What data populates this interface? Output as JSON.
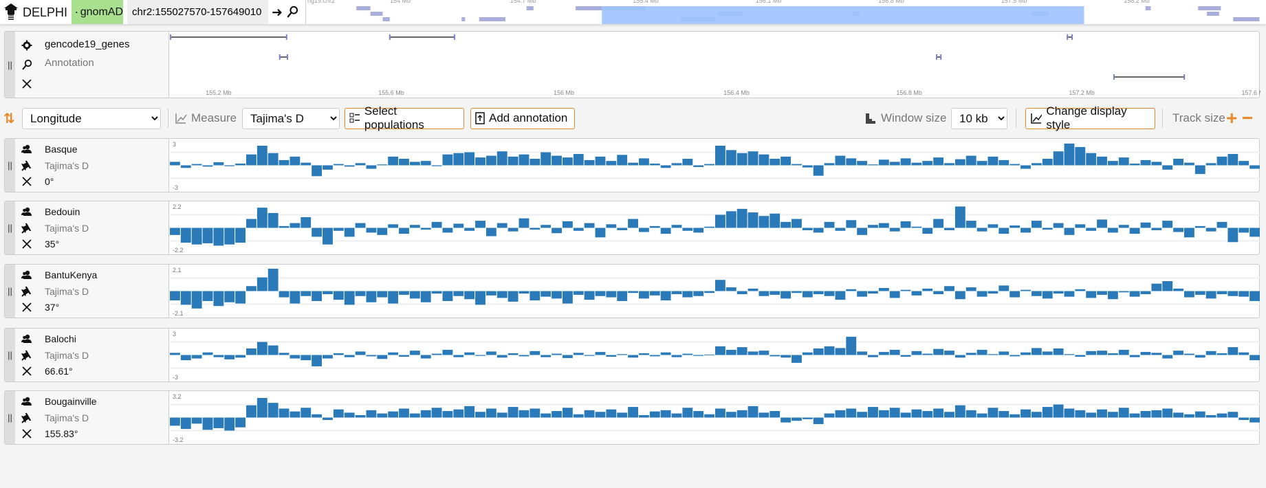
{
  "app": {
    "title": "DELPHI",
    "dataset_badge": "gnomAD",
    "location": "chr2:155027570-157649010"
  },
  "nav": {
    "chromosome_label": "hg19.chr2",
    "ticks": [
      "154 Mb",
      "154.7 Mb",
      "155.4 Mb",
      "156.1 Mb",
      "156.8 Mb",
      "157.5 Mb",
      "158.2 Mb"
    ],
    "tick_values": [
      154,
      154.7,
      155.4,
      156.1,
      156.8,
      157.5,
      158.2
    ],
    "highlight_mb": [
      155.15,
      157.9
    ],
    "highlight_color": "#9dc3ff",
    "feature_color": "#a9aedc",
    "features_mb": [
      [
        153.75,
        153.83,
        0
      ],
      [
        154.72,
        154.76,
        0
      ],
      [
        155.0,
        155.4,
        0
      ],
      [
        155.81,
        155.95,
        1
      ],
      [
        156.58,
        156.62,
        1
      ],
      [
        157.6,
        157.7,
        1
      ],
      [
        158.25,
        158.28,
        0
      ],
      [
        158.55,
        158.68,
        0
      ],
      [
        153.83,
        153.9,
        1
      ],
      [
        153.9,
        153.94,
        2
      ],
      [
        154.35,
        154.37,
        2
      ],
      [
        154.45,
        154.6,
        2
      ],
      [
        155.6,
        155.8,
        2
      ],
      [
        158.6,
        158.67,
        1
      ],
      [
        158.75,
        158.9,
        2
      ]
    ]
  },
  "annotation_track": {
    "name": "gencode19_genes",
    "type": "Annotation",
    "domain_mb": [
      155.087,
      157.614
    ],
    "ticks": [
      "155.2 Mb",
      "155.6 Mb",
      "156 Mb",
      "156.4 Mb",
      "156.8 Mb",
      "157.2 Mb",
      "157.6 Mb"
    ],
    "tick_values": [
      155.2,
      155.6,
      156.0,
      156.4,
      156.8,
      157.2,
      157.6
    ],
    "genes_mb": [
      [
        155.087,
        155.359,
        0
      ],
      [
        155.595,
        155.748,
        0
      ],
      [
        157.165,
        157.179,
        0
      ],
      [
        155.34,
        155.361,
        1
      ],
      [
        156.862,
        156.875,
        1
      ],
      [
        157.273,
        157.439,
        2
      ]
    ]
  },
  "toolbar": {
    "sort_value": "Longitude",
    "measure_label": "Measure",
    "measure_value": "Tajima's D",
    "select_populations": "Select populations",
    "add_annotation": "Add annotation",
    "window_size_label": "Window size",
    "window_size_value": "10 kb",
    "change_display_style": "Change display style",
    "track_size_label": "Track size",
    "plus": "+",
    "minus": "−"
  },
  "colors": {
    "bar": "#2a7ab9",
    "accent": "#e8892c",
    "badge": "#a8e08f"
  },
  "chart_data": [
    {
      "type": "bar",
      "series_name": "Basque",
      "measure": "Tajima's D",
      "angle": "0°",
      "ylim_labels": [
        "3",
        "-3"
      ],
      "gridline": 3,
      "values": [
        0.8,
        -0.6,
        0.3,
        -0.3,
        0.7,
        -0.2,
        0.4,
        2.5,
        4.5,
        2.8,
        1.2,
        2.0,
        0.6,
        -2.5,
        -1.0,
        0.3,
        -0.3,
        0.5,
        -0.8,
        0.2,
        2.0,
        1.5,
        0.8,
        1.0,
        -0.2,
        2.5,
        2.8,
        3.0,
        1.8,
        2.2,
        3.2,
        2.0,
        2.5,
        1.5,
        3.0,
        2.2,
        1.8,
        2.6,
        1.2,
        2.0,
        1.0,
        2.4,
        0.6,
        1.6,
        0.4,
        -0.6,
        0.5,
        1.5,
        -0.4,
        0.3,
        4.5,
        3.5,
        2.8,
        3.2,
        2.5,
        1.5,
        2.0,
        0.3,
        -0.5,
        -2.4,
        0.5,
        2.2,
        1.6,
        1.0,
        0.2,
        1.3,
        0.8,
        1.6,
        0.6,
        1.0,
        1.8,
        0.5,
        1.4,
        2.2,
        1.0,
        2.0,
        1.2,
        0.3,
        -0.8,
        0.5,
        1.5,
        3.2,
        5.0,
        4.2,
        2.8,
        2.0,
        1.0,
        1.8,
        0.4,
        1.2,
        0.8,
        -1.0,
        1.5,
        0.6,
        -2.0,
        0.5,
        2.0,
        2.6,
        1.0,
        -0.8
      ]
    },
    {
      "type": "bar",
      "series_name": "Bedouin",
      "measure": "Tajima's D",
      "angle": "35°",
      "ylim_labels": [
        "2.2",
        "-2.2"
      ],
      "gridline": 2.2,
      "values": [
        -1.2,
        -2.5,
        -2.8,
        -2.6,
        -3.0,
        -2.8,
        -2.5,
        1.5,
        3.4,
        2.5,
        0.3,
        0.8,
        1.8,
        -1.5,
        -2.8,
        -0.5,
        -1.5,
        0.8,
        -0.8,
        -1.2,
        0.6,
        -1.0,
        0.5,
        -0.3,
        1.0,
        -0.8,
        0.7,
        -0.5,
        1.2,
        -1.4,
        0.8,
        -0.6,
        1.6,
        -0.3,
        0.5,
        -0.9,
        1.1,
        -0.5,
        0.8,
        -1.6,
        0.6,
        -0.4,
        1.5,
        -0.7,
        0.3,
        -1.0,
        0.5,
        -0.5,
        -0.8,
        0.2,
        2.2,
        2.8,
        3.2,
        2.6,
        2.0,
        2.4,
        1.0,
        1.5,
        -0.4,
        -0.8,
        1.0,
        -0.5,
        1.3,
        -1.2,
        0.5,
        0.8,
        -0.6,
        1.1,
        0.2,
        -1.0,
        1.5,
        -0.4,
        3.6,
        1.2,
        -0.6,
        0.6,
        -1.0,
        0.4,
        -0.8,
        1.2,
        -0.3,
        0.8,
        -1.2,
        0.6,
        -0.5,
        1.4,
        -0.8,
        0.5,
        -1.0,
        0.9,
        -0.4,
        1.2,
        -0.7,
        -1.6,
        0.3,
        -0.6,
        1.0,
        -2.4,
        -0.8,
        -1.5
      ]
    },
    {
      "type": "bar",
      "series_name": "BantuKenya",
      "measure": "Tajima's D",
      "angle": "37°",
      "ylim_labels": [
        "2.1",
        "-2.1"
      ],
      "gridline": 2.1,
      "values": [
        -1.5,
        -2.2,
        -2.8,
        -1.6,
        -2.4,
        -1.8,
        -2.0,
        0.8,
        2.2,
        3.6,
        -1.0,
        -2.0,
        -0.8,
        -1.6,
        -0.5,
        -1.4,
        -2.2,
        -0.8,
        -1.8,
        -1.0,
        -2.0,
        -0.6,
        -1.2,
        -1.8,
        -0.4,
        -1.6,
        -0.8,
        -1.3,
        -2.2,
        -0.7,
        -1.1,
        -1.7,
        -0.4,
        -1.5,
        -0.9,
        -1.2,
        -2.0,
        -0.6,
        -1.4,
        -0.8,
        -1.0,
        -1.6,
        -0.3,
        -1.2,
        -0.7,
        -1.5,
        -0.5,
        -1.0,
        -0.8,
        -0.3,
        1.8,
        0.6,
        -0.5,
        0.4,
        -0.8,
        -0.6,
        -1.2,
        -0.3,
        -1.0,
        -0.5,
        -0.8,
        -1.4,
        0.3,
        -0.9,
        -0.4,
        0.5,
        -1.1,
        0.2,
        -0.7,
        0.4,
        -0.5,
        0.8,
        -1.3,
        0.6,
        -0.9,
        -0.4,
        0.9,
        -1.0,
        0.2,
        -0.8,
        -1.2,
        -0.4,
        -0.9,
        0.3,
        -1.1,
        -0.6,
        -1.3,
        -0.2,
        -0.9,
        -0.5,
        1.2,
        1.6,
        0.4,
        -1.0,
        -0.6,
        -1.2,
        -0.5,
        -0.8,
        -0.9,
        -1.6
      ]
    },
    {
      "type": "bar",
      "series_name": "Balochi",
      "measure": "Tajima's D",
      "angle": "66.61°",
      "ylim_labels": [
        "3",
        "-3"
      ],
      "gridline": 3,
      "values": [
        0.5,
        -1.2,
        -0.8,
        0.6,
        -0.5,
        -1.0,
        -0.6,
        1.5,
        3.0,
        2.2,
        0.5,
        -0.8,
        -1.2,
        -2.6,
        -0.8,
        0.4,
        -0.5,
        0.8,
        -0.3,
        -0.9,
        0.6,
        -0.4,
        1.0,
        -0.8,
        0.3,
        1.2,
        -0.5,
        0.6,
        -0.2,
        0.8,
        -0.6,
        0.4,
        -0.3,
        0.9,
        -0.5,
        0.3,
        -0.7,
        0.5,
        -0.2,
        0.7,
        -0.4,
        0.2,
        -0.6,
        0.4,
        -0.3,
        0.6,
        -0.5,
        0.3,
        -0.2,
        0.1,
        2.0,
        1.2,
        1.8,
        0.8,
        1.0,
        -0.3,
        -0.6,
        -1.8,
        0.6,
        1.5,
        2.0,
        1.6,
        4.2,
        0.8,
        -0.5,
        0.7,
        1.2,
        -0.4,
        0.9,
        0.3,
        1.4,
        1.0,
        -0.6,
        0.5,
        1.2,
        0.2,
        0.8,
        -0.3,
        0.6,
        1.6,
        0.8,
        1.5,
        0.2,
        -0.4,
        0.9,
        1.0,
        0.4,
        1.2,
        -0.5,
        0.7,
        0.5,
        -0.8,
        1.0,
        0.3,
        -0.6,
        0.9,
        0.4,
        1.8,
        0.6,
        -1.2
      ]
    },
    {
      "type": "bar",
      "series_name": "Bougainville",
      "measure": "Tajima's D",
      "angle": "155.83°",
      "ylim_labels": [
        "3.2",
        "-3.2"
      ],
      "gridline": 3.2,
      "values": [
        -2.0,
        -2.8,
        -1.5,
        -3.0,
        -2.6,
        -3.2,
        -2.4,
        3.0,
        4.8,
        3.6,
        2.2,
        1.5,
        2.4,
        0.8,
        -0.6,
        2.0,
        1.2,
        0.6,
        1.8,
        1.0,
        1.5,
        2.2,
        1.0,
        1.8,
        2.4,
        1.6,
        2.0,
        2.8,
        1.4,
        2.2,
        1.2,
        2.6,
        1.8,
        2.2,
        1.0,
        1.6,
        2.4,
        0.8,
        1.8,
        1.4,
        2.0,
        1.2,
        2.6,
        0.6,
        1.5,
        1.8,
        1.0,
        2.4,
        1.6,
        0.8,
        2.2,
        1.4,
        1.8,
        2.8,
        1.2,
        1.6,
        -1.2,
        -0.8,
        -0.4,
        -1.6,
        1.0,
        1.8,
        2.2,
        1.4,
        2.6,
        1.8,
        2.4,
        1.2,
        2.0,
        1.6,
        2.2,
        1.4,
        3.0,
        1.8,
        1.0,
        2.4,
        1.6,
        0.8,
        2.0,
        1.4,
        2.6,
        3.2,
        2.2,
        1.8,
        1.2,
        2.0,
        1.4,
        2.4,
        1.0,
        1.6,
        1.8,
        2.2,
        1.2,
        0.8,
        1.5,
        0.6,
        1.0,
        1.4,
        -0.6,
        -1.2
      ]
    }
  ]
}
